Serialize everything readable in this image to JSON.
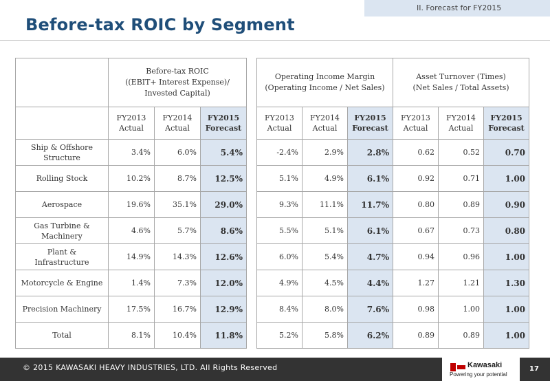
{
  "header": {
    "section": "II.  Forecast for FY2015",
    "title": "Before-tax ROIC by Segment"
  },
  "roic_table": {
    "group_header": [
      "Before-tax ROIC",
      "((EBIT+ Interest Expense)/",
      "Invested Capital)"
    ],
    "columns": [
      {
        "line1": "FY2013",
        "line2": "Actual"
      },
      {
        "line1": "FY2014",
        "line2": "Actual"
      },
      {
        "line1": "FY2015",
        "line2": "Forecast"
      }
    ],
    "rows": [
      {
        "label": "Ship & Offshore Structure",
        "values": [
          "3.4%",
          "6.0%",
          "5.4%"
        ]
      },
      {
        "label": "Rolling Stock",
        "values": [
          "10.2%",
          "8.7%",
          "12.5%"
        ]
      },
      {
        "label": "Aerospace",
        "values": [
          "19.6%",
          "35.1%",
          "29.0%"
        ]
      },
      {
        "label": "Gas Turbine & Machinery",
        "values": [
          "4.6%",
          "5.7%",
          "8.6%"
        ]
      },
      {
        "label": "Plant & Infrastructure",
        "values": [
          "14.9%",
          "14.3%",
          "12.6%"
        ]
      },
      {
        "label": "Motorcycle & Engine",
        "values": [
          "1.4%",
          "7.3%",
          "12.0%"
        ]
      },
      {
        "label": "Precision Machinery",
        "values": [
          "17.5%",
          "16.7%",
          "12.9%"
        ]
      },
      {
        "label": "Total",
        "values": [
          "8.1%",
          "10.4%",
          "11.8%"
        ]
      }
    ]
  },
  "margin_turnover_table": {
    "margin_header": [
      "Operating Income Margin",
      "(Operating Income /  Net Sales)"
    ],
    "turnover_header": [
      "Asset Turnover  (Times)",
      "(Net Sales / Total Assets)"
    ],
    "columns": [
      {
        "line1": "FY2013",
        "line2": "Actual"
      },
      {
        "line1": "FY2014",
        "line2": "Actual"
      },
      {
        "line1": "FY2015",
        "line2": "Forecast"
      },
      {
        "line1": "FY2013",
        "line2": "Actual"
      },
      {
        "line1": "FY2014",
        "line2": "Actual"
      },
      {
        "line1": "FY2015",
        "line2": "Forecast"
      }
    ],
    "rows": [
      [
        "-2.4%",
        "2.9%",
        "2.8%",
        "0.62",
        "0.52",
        "0.70"
      ],
      [
        "5.1%",
        "4.9%",
        "6.1%",
        "0.92",
        "0.71",
        "1.00"
      ],
      [
        "9.3%",
        "11.1%",
        "11.7%",
        "0.80",
        "0.89",
        "0.90"
      ],
      [
        "5.5%",
        "5.1%",
        "6.1%",
        "0.67",
        "0.73",
        "0.80"
      ],
      [
        "6.0%",
        "5.4%",
        "4.7%",
        "0.94",
        "0.96",
        "1.00"
      ],
      [
        "4.9%",
        "4.5%",
        "4.4%",
        "1.27",
        "1.21",
        "1.30"
      ],
      [
        "8.4%",
        "8.0%",
        "7.6%",
        "0.98",
        "1.00",
        "1.00"
      ],
      [
        "5.2%",
        "5.8%",
        "6.2%",
        "0.89",
        "0.89",
        "1.00"
      ]
    ]
  },
  "footer": {
    "copyright": "© 2015 KAWASAKI HEAVY INDUSTRIES, LTD. All Rights Reserved",
    "logo_name": "Kawasaki",
    "logo_tagline": "Powering your potential",
    "page_number": "17"
  },
  "colors": {
    "title": "#1f4e79",
    "forecast_fill": "#dbe5f1",
    "footer_bg": "#333333",
    "logo_red": "#c00000"
  }
}
